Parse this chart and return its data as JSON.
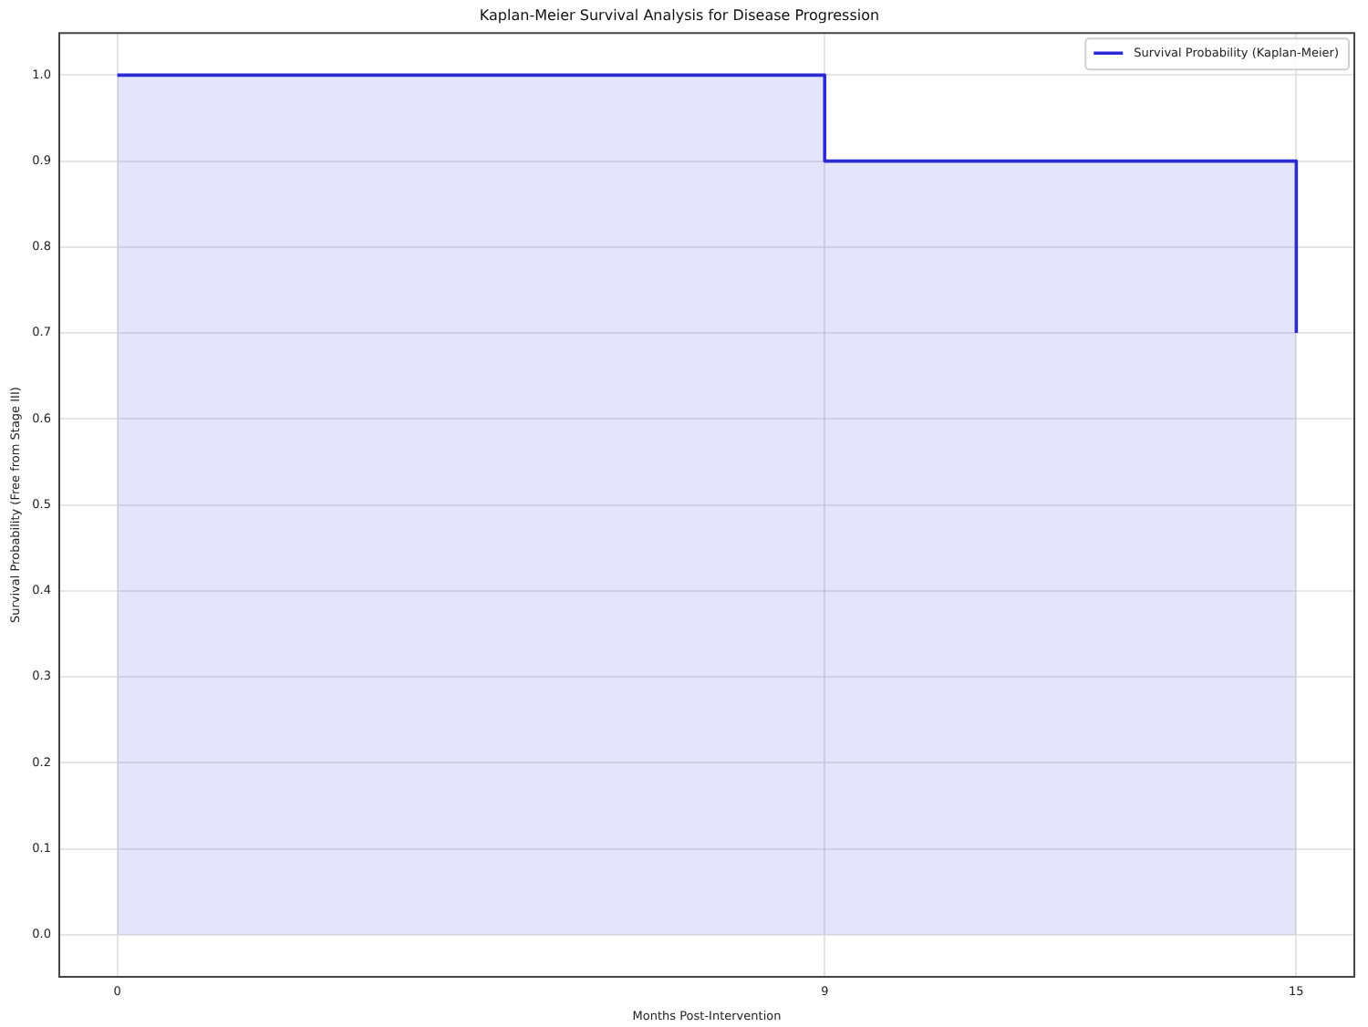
{
  "chart_data": {
    "type": "step",
    "title": "Kaplan-Meier Survival Analysis for Disease Progression",
    "xlabel": "Months Post-Intervention",
    "ylabel": "Survival Probability (Free from Stage III)",
    "x": [
      0,
      9,
      15
    ],
    "series": [
      {
        "name": "Survival Probability (Kaplan-Meier)",
        "color": "#2b2bd6",
        "values": [
          1.0,
          0.9,
          0.7
        ]
      }
    ],
    "xlim": [
      -0.75,
      15.75
    ],
    "xticks": [
      0,
      9,
      15
    ],
    "ylim": [
      -0.05,
      1.05
    ],
    "yticks": [
      {
        "value": 0,
        "label": "0.0"
      },
      0.1,
      0.2,
      0.3,
      0.4,
      0.5,
      0.6,
      0.7,
      0.8,
      0.9,
      {
        "value": 1,
        "label": "1.0"
      }
    ],
    "grid": true,
    "legend": "top right"
  }
}
